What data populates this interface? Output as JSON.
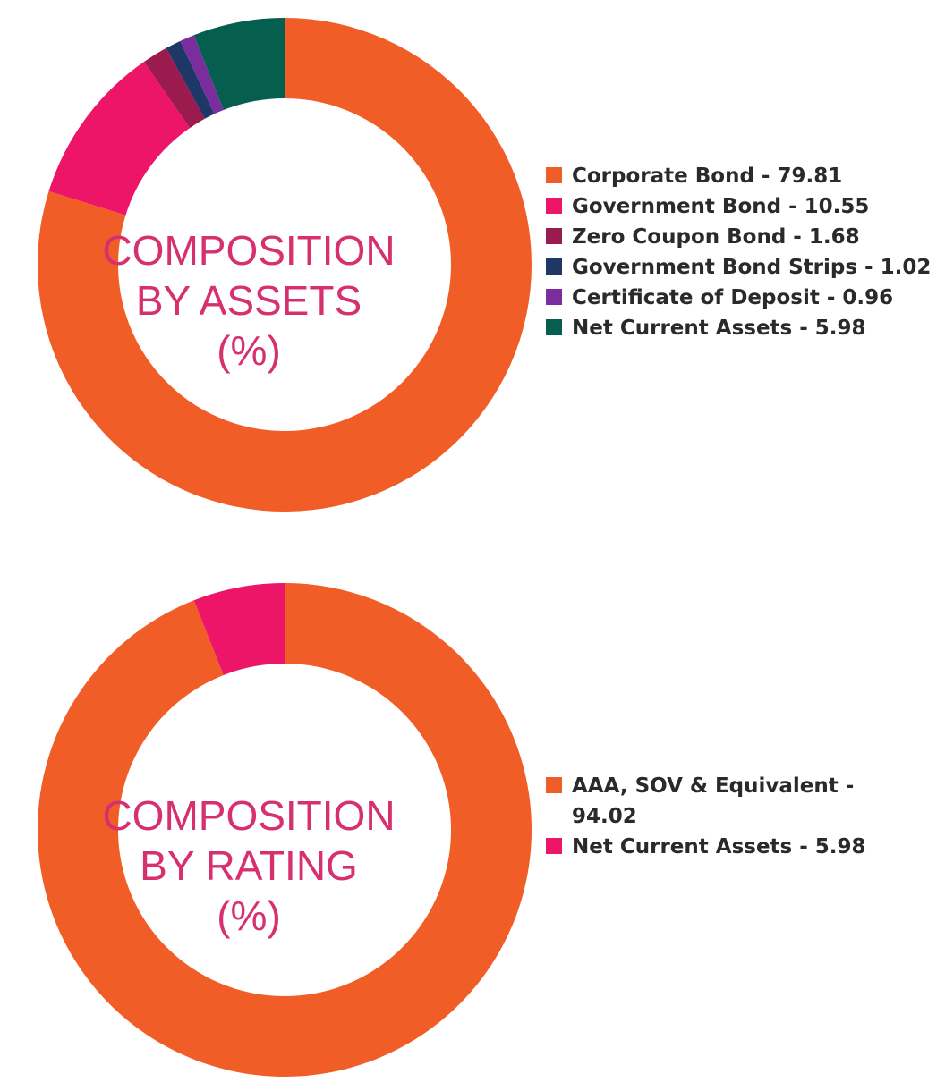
{
  "chart_data": [
    {
      "type": "pie",
      "center_title": [
        "COMPOSITION",
        "BY ASSETS",
        "(%)"
      ],
      "slices": [
        {
          "label": "Corporate Bond",
          "value": 79.81,
          "color": "#f15d27"
        },
        {
          "label": "Government Bond",
          "value": 10.55,
          "color": "#ed1568"
        },
        {
          "label": "Zero Coupon Bond",
          "value": 1.68,
          "color": "#9b1b4e"
        },
        {
          "label": "Government Bond Strips",
          "value": 1.02,
          "color": "#1e3767"
        },
        {
          "label": "Certificate of Deposit",
          "value": 0.96,
          "color": "#7a2d9c"
        },
        {
          "label": "Net Current Assets",
          "value": 5.98,
          "color": "#065e4f"
        }
      ],
      "legend_items": [
        "Corporate Bond - 79.81",
        "Government Bond - 10.55",
        "Zero Coupon Bond - 1.68",
        "Government Bond Strips - 1.02",
        "Certificate of Deposit - 0.96",
        "Net Current Assets - 5.98"
      ],
      "legend_position": "right"
    },
    {
      "type": "pie",
      "center_title": [
        "COMPOSITION",
        "BY RATING",
        "(%)"
      ],
      "slices": [
        {
          "label": "AAA, SOV & Equivalent",
          "value": 94.02,
          "color": "#f15d27"
        },
        {
          "label": "Net Current Assets",
          "value": 5.98,
          "color": "#ed1568"
        }
      ],
      "legend_items": [
        "AAA, SOV & Equivalent - 94.02",
        "Net Current Assets - 5.98"
      ],
      "legend_position": "right"
    }
  ]
}
